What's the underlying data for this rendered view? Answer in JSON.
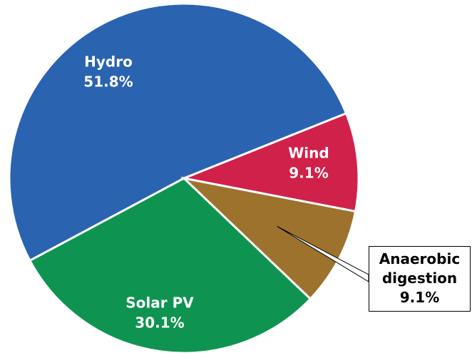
{
  "chart_data": {
    "type": "pie",
    "categories": [
      "Hydro",
      "Wind",
      "Anaerobic digestion",
      "Solar PV"
    ],
    "values": [
      51.8,
      9.1,
      9.1,
      30.1
    ],
    "value_labels": [
      "51.8%",
      "9.1%",
      "9.1%",
      "30.1%"
    ],
    "colors": [
      "#2a63b0",
      "#cf2149",
      "#9c722c",
      "#0e9450"
    ]
  }
}
